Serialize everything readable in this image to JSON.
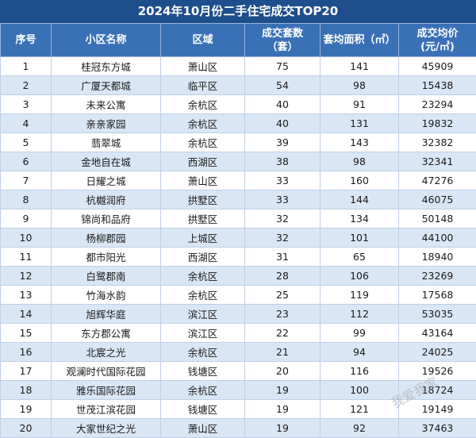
{
  "title": "2024年10月份二手住宅成交TOP20",
  "headers": {
    "rank": "序号",
    "community": "小区名称",
    "district": "区域",
    "deals_line1": "成交套数",
    "deals_line2": "（套）",
    "area": "套均面积（㎡）",
    "price_line1": "成交均价",
    "price_line2": "(元/㎡)"
  },
  "rows": [
    {
      "rank": "1",
      "community": "桂冠东方城",
      "district": "萧山区",
      "deals": "75",
      "area": "141",
      "price": "45909"
    },
    {
      "rank": "2",
      "community": "广厦天都城",
      "district": "临平区",
      "deals": "54",
      "area": "98",
      "price": "15438"
    },
    {
      "rank": "3",
      "community": "未来公寓",
      "district": "余杭区",
      "deals": "40",
      "area": "91",
      "price": "23294"
    },
    {
      "rank": "4",
      "community": "亲亲家园",
      "district": "余杭区",
      "deals": "40",
      "area": "131",
      "price": "19832"
    },
    {
      "rank": "5",
      "community": "翡翠城",
      "district": "余杭区",
      "deals": "39",
      "area": "143",
      "price": "32382"
    },
    {
      "rank": "6",
      "community": "金地自在城",
      "district": "西湖区",
      "deals": "38",
      "area": "98",
      "price": "32341"
    },
    {
      "rank": "7",
      "community": "日耀之城",
      "district": "萧山区",
      "deals": "33",
      "area": "160",
      "price": "47276"
    },
    {
      "rank": "8",
      "community": "杭樾润府",
      "district": "拱墅区",
      "deals": "33",
      "area": "144",
      "price": "46075"
    },
    {
      "rank": "9",
      "community": "锦尚和品府",
      "district": "拱墅区",
      "deals": "32",
      "area": "134",
      "price": "50148"
    },
    {
      "rank": "10",
      "community": "杨柳郡园",
      "district": "上城区",
      "deals": "32",
      "area": "101",
      "price": "44100"
    },
    {
      "rank": "11",
      "community": "都市阳光",
      "district": "西湖区",
      "deals": "31",
      "area": "65",
      "price": "18940"
    },
    {
      "rank": "12",
      "community": "白鹭郡南",
      "district": "余杭区",
      "deals": "28",
      "area": "106",
      "price": "23269"
    },
    {
      "rank": "13",
      "community": "竹海水韵",
      "district": "余杭区",
      "deals": "25",
      "area": "119",
      "price": "17568"
    },
    {
      "rank": "14",
      "community": "旭辉华庭",
      "district": "滨江区",
      "deals": "23",
      "area": "112",
      "price": "53035"
    },
    {
      "rank": "15",
      "community": "东方郡公寓",
      "district": "滨江区",
      "deals": "22",
      "area": "99",
      "price": "43164"
    },
    {
      "rank": "16",
      "community": "北宸之光",
      "district": "余杭区",
      "deals": "21",
      "area": "94",
      "price": "24025"
    },
    {
      "rank": "17",
      "community": "观澜时代国际花园",
      "district": "钱塘区",
      "deals": "20",
      "area": "116",
      "price": "19526"
    },
    {
      "rank": "18",
      "community": "雅乐国际花园",
      "district": "余杭区",
      "deals": "19",
      "area": "100",
      "price": "18724"
    },
    {
      "rank": "19",
      "community": "世茂江滨花园",
      "district": "钱塘区",
      "deals": "19",
      "area": "121",
      "price": "19149"
    },
    {
      "rank": "20",
      "community": "大家世纪之光",
      "district": "萧山区",
      "deals": "19",
      "area": "92",
      "price": "37463"
    }
  ],
  "watermark": "我爱我家"
}
